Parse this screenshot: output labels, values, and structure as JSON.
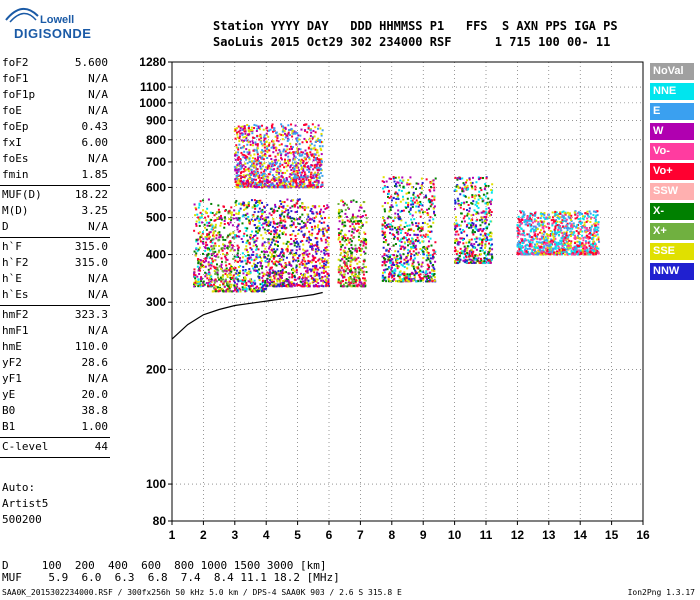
{
  "logo": {
    "line1": "Lowell",
    "line2": "DIGISONDE"
  },
  "header": {
    "line1": "Station YYYY DAY   DDD HHMMSS P1   FFS  S AXN PPS IGA PS",
    "line2": "SaoLuis 2015 Oct29 302 234000 RSF      1 715 100 00- 11"
  },
  "params": {
    "groups": [
      [
        {
          "name": "foF2",
          "value": "5.600"
        },
        {
          "name": "foF1",
          "value": "N/A"
        },
        {
          "name": "foF1p",
          "value": "N/A"
        },
        {
          "name": "foE",
          "value": "N/A"
        },
        {
          "name": "foEp",
          "value": "0.43"
        },
        {
          "name": "fxI",
          "value": "6.00"
        },
        {
          "name": "foEs",
          "value": "N/A"
        },
        {
          "name": "fmin",
          "value": "1.85"
        }
      ],
      [
        {
          "name": "MUF(D)",
          "value": "18.22"
        },
        {
          "name": "M(D)",
          "value": "3.25"
        },
        {
          "name": "D",
          "value": "N/A"
        }
      ],
      [
        {
          "name": "h`F",
          "value": "315.0"
        },
        {
          "name": "h`F2",
          "value": "315.0"
        },
        {
          "name": "h`E",
          "value": "N/A"
        },
        {
          "name": "h`Es",
          "value": "N/A"
        }
      ],
      [
        {
          "name": "hmF2",
          "value": "323.3"
        },
        {
          "name": "hmF1",
          "value": "N/A"
        },
        {
          "name": "hmE",
          "value": "110.0"
        },
        {
          "name": "yF2",
          "value": "28.6"
        },
        {
          "name": "yF1",
          "value": "N/A"
        },
        {
          "name": "yE",
          "value": "20.0"
        },
        {
          "name": "B0",
          "value": "38.8"
        },
        {
          "name": "B1",
          "value": "1.00"
        }
      ],
      [
        {
          "name": "C-level",
          "value": "44"
        }
      ]
    ]
  },
  "auto": {
    "line1": "Auto:",
    "line2": "Artist5",
    "line3": "500200"
  },
  "legend": [
    {
      "label": "NoVal",
      "color": "#a0a0a0"
    },
    {
      "label": "NNE",
      "color": "#00e5ee"
    },
    {
      "label": "E",
      "color": "#3aa0f0"
    },
    {
      "label": "W",
      "color": "#b000b0"
    },
    {
      "label": "Vo-",
      "color": "#ff3ca0"
    },
    {
      "label": "Vo+",
      "color": "#ff0030"
    },
    {
      "label": "SSW",
      "color": "#ffb0b0"
    },
    {
      "label": "X-",
      "color": "#008000"
    },
    {
      "label": "X+",
      "color": "#70b040"
    },
    {
      "label": "SSE",
      "color": "#e0e000"
    },
    {
      "label": "NNW",
      "color": "#2020d0"
    }
  ],
  "dmuf": {
    "d_line": "D     100  200  400  600  800 1000 1500 3000 [km]",
    "muf_line": "MUF    5.9  6.0  6.3  6.8  7.4  8.4 11.1 18.2 [MHz]"
  },
  "footer": {
    "left": "SAA0K_2015302234000.RSF / 300fx256h 50 kHz 5.0 km / DPS-4 SAA0K 903 / 2.6 S 315.8 E",
    "version": "Ion2Png 1.3.17"
  },
  "chart_data": {
    "type": "scatter",
    "xlabel": "",
    "ylabel": "",
    "xlim": [
      1,
      16
    ],
    "ylim": [
      80,
      1280
    ],
    "y_scale": "log",
    "x_ticks": [
      1,
      2,
      3,
      4,
      5,
      6,
      7,
      8,
      9,
      10,
      11,
      12,
      13,
      14,
      15,
      16
    ],
    "y_ticks": [
      80,
      100,
      200,
      300,
      400,
      500,
      600,
      700,
      800,
      900,
      1000,
      1100,
      1280
    ],
    "grid": "dotted",
    "clusters": [
      {
        "x": [
          1.7,
          2.3
        ],
        "y": [
          330,
          560
        ],
        "colors": [
          "#e0e000",
          "#ff0030",
          "#b000b0",
          "#00e5ee",
          "#008000"
        ]
      },
      {
        "x": [
          2.3,
          3.0
        ],
        "y": [
          320,
          540
        ],
        "colors": [
          "#e0e000",
          "#ff0030",
          "#b000b0",
          "#008000",
          "#70b040"
        ]
      },
      {
        "x": [
          3.0,
          4.0
        ],
        "y": [
          320,
          560
        ],
        "colors": [
          "#e0e000",
          "#ff0030",
          "#b000b0",
          "#2020d0",
          "#008000",
          "#00e5ee"
        ]
      },
      {
        "x": [
          3.0,
          5.8
        ],
        "y": [
          600,
          880
        ],
        "colors": [
          "#ff0030",
          "#b000b0",
          "#e0e000",
          "#3aa0f0"
        ]
      },
      {
        "x": [
          4.0,
          5.2
        ],
        "y": [
          330,
          560
        ],
        "colors": [
          "#e0e000",
          "#ff0030",
          "#b000b0",
          "#2020d0",
          "#008000"
        ]
      },
      {
        "x": [
          5.2,
          6.0
        ],
        "y": [
          330,
          540
        ],
        "colors": [
          "#e0e000",
          "#ff0030",
          "#b000b0",
          "#2020d0"
        ]
      },
      {
        "x": [
          6.3,
          7.2
        ],
        "y": [
          330,
          560
        ],
        "colors": [
          "#e0e000",
          "#ff0030",
          "#b000b0",
          "#008000",
          "#70b040"
        ]
      },
      {
        "x": [
          7.7,
          9.4
        ],
        "y": [
          340,
          640
        ],
        "colors": [
          "#e0e000",
          "#ff0030",
          "#b000b0",
          "#2020d0",
          "#008000",
          "#00e5ee"
        ]
      },
      {
        "x": [
          10.0,
          11.2
        ],
        "y": [
          380,
          640
        ],
        "colors": [
          "#e0e000",
          "#ff0030",
          "#b000b0",
          "#2020d0",
          "#008000",
          "#00e5ee"
        ]
      },
      {
        "x": [
          12.0,
          12.5
        ],
        "y": [
          400,
          520
        ],
        "colors": [
          "#00e5ee",
          "#3aa0f0",
          "#ff3ca0",
          "#ff0030"
        ]
      },
      {
        "x": [
          12.5,
          14.6
        ],
        "y": [
          400,
          520
        ],
        "colors": [
          "#00e5ee",
          "#3aa0f0",
          "#ff3ca0",
          "#e0e000",
          "#ff0030"
        ]
      }
    ],
    "profile_curve": {
      "name": "",
      "points": [
        [
          1,
          240
        ],
        [
          1.5,
          262
        ],
        [
          2,
          278
        ],
        [
          2.5,
          287
        ],
        [
          3,
          294
        ],
        [
          3.5,
          298
        ],
        [
          4,
          302
        ],
        [
          4.5,
          306
        ],
        [
          5,
          310
        ],
        [
          5.5,
          314
        ],
        [
          5.8,
          318
        ]
      ]
    }
  }
}
